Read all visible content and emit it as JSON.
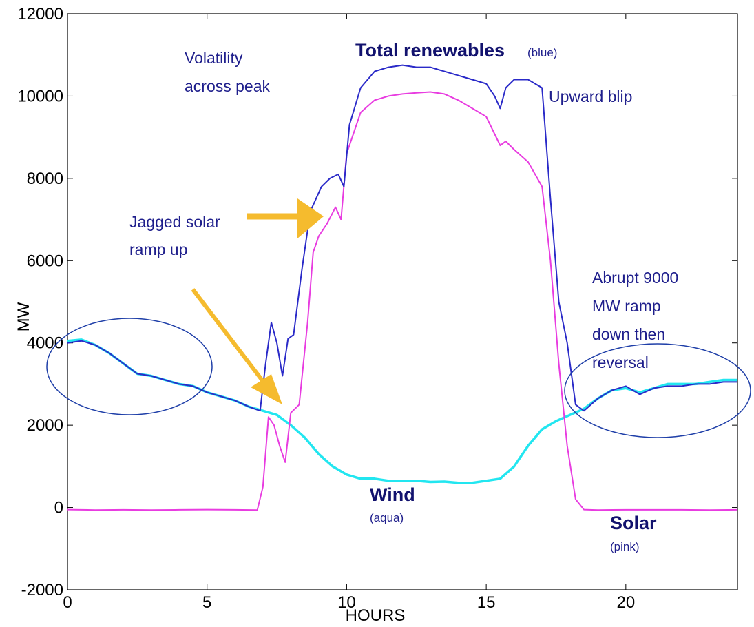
{
  "chart_data": {
    "type": "line",
    "xlabel": "HOURS",
    "ylabel": "MW",
    "xlim": [
      0,
      24
    ],
    "ylim": [
      -2000,
      12000
    ],
    "xticks": [
      0,
      5,
      10,
      15,
      20
    ],
    "yticks": [
      -2000,
      0,
      2000,
      4000,
      6000,
      8000,
      10000,
      12000
    ],
    "grid": false,
    "series": [
      {
        "name": "Wind",
        "color": "#22e6f0",
        "x": [
          0,
          0.5,
          1,
          1.5,
          2,
          2.5,
          3,
          3.5,
          4,
          4.5,
          5,
          5.5,
          6,
          6.5,
          7,
          7.5,
          8,
          8.5,
          9,
          9.5,
          10,
          10.5,
          11,
          11.5,
          12,
          12.5,
          13,
          13.5,
          14,
          14.5,
          15,
          15.5,
          16,
          16.5,
          17,
          17.5,
          18,
          18.5,
          19,
          19.5,
          20,
          20.5,
          21,
          21.5,
          22,
          22.5,
          23,
          23.5,
          24
        ],
        "y": [
          4050,
          4080,
          3950,
          3750,
          3500,
          3250,
          3200,
          3100,
          3000,
          2950,
          2800,
          2700,
          2600,
          2450,
          2350,
          2250,
          2000,
          1700,
          1300,
          1000,
          800,
          700,
          700,
          650,
          650,
          650,
          620,
          630,
          600,
          600,
          650,
          700,
          1000,
          1500,
          1900,
          2100,
          2250,
          2400,
          2650,
          2850,
          2900,
          2800,
          2900,
          3000,
          3000,
          3000,
          3050,
          3100,
          3100
        ]
      },
      {
        "name": "Solar",
        "color": "#e83ce0",
        "x": [
          0,
          1,
          2,
          3,
          4,
          5,
          6,
          6.8,
          7.0,
          7.2,
          7.4,
          7.6,
          7.8,
          8.0,
          8.3,
          8.6,
          8.8,
          9.0,
          9.3,
          9.6,
          9.8,
          10.0,
          10.5,
          11.0,
          11.5,
          12.0,
          12.5,
          13.0,
          13.5,
          14.0,
          14.5,
          15.0,
          15.5,
          15.7,
          16.0,
          16.5,
          17.0,
          17.3,
          17.6,
          17.9,
          18.2,
          18.5,
          19,
          20,
          21,
          22,
          23,
          24
        ],
        "y": [
          -50,
          -60,
          -55,
          -60,
          -55,
          -50,
          -55,
          -60,
          500,
          2200,
          2000,
          1500,
          1100,
          2300,
          2500,
          4500,
          6200,
          6600,
          6900,
          7300,
          7000,
          8600,
          9600,
          9900,
          10000,
          10050,
          10080,
          10100,
          10050,
          9900,
          9700,
          9500,
          8800,
          8900,
          8700,
          8400,
          7800,
          6000,
          3500,
          1500,
          200,
          -50,
          -60,
          -55,
          -55,
          -55,
          -60,
          -55
        ]
      },
      {
        "name": "Total renewables",
        "color": "#2a2ac8",
        "x": [
          0,
          0.5,
          1,
          1.5,
          2,
          2.5,
          3,
          3.5,
          4,
          4.5,
          5,
          5.5,
          6,
          6.5,
          6.9,
          7.1,
          7.3,
          7.5,
          7.7,
          7.9,
          8.1,
          8.4,
          8.7,
          8.9,
          9.1,
          9.4,
          9.7,
          9.9,
          10.1,
          10.5,
          11.0,
          11.5,
          12.0,
          12.5,
          13.0,
          13.5,
          14.0,
          14.5,
          15.0,
          15.3,
          15.5,
          15.7,
          16.0,
          16.5,
          17.0,
          17.3,
          17.6,
          17.9,
          18.2,
          18.5,
          19,
          19.5,
          20,
          20.5,
          21,
          21.5,
          22,
          22.5,
          23,
          23.5,
          24
        ],
        "y": [
          4000,
          4050,
          3950,
          3750,
          3500,
          3250,
          3200,
          3100,
          3000,
          2950,
          2800,
          2700,
          2600,
          2450,
          2350,
          3500,
          4500,
          4000,
          3200,
          4100,
          4200,
          5800,
          7200,
          7500,
          7800,
          8000,
          8100,
          7800,
          9300,
          10200,
          10600,
          10700,
          10750,
          10700,
          10700,
          10600,
          10500,
          10400,
          10300,
          10000,
          9700,
          10200,
          10400,
          10400,
          10200,
          7500,
          5000,
          4000,
          2500,
          2350,
          2650,
          2850,
          2950,
          2750,
          2900,
          2950,
          2950,
          3000,
          3000,
          3050,
          3050
        ]
      }
    ],
    "annotations": {
      "volatility": [
        "Volatility",
        "across peak"
      ],
      "total_bold": "Total renewables",
      "total_note": "(blue)",
      "upward_blip": "Upward blip",
      "jagged": [
        "Jagged solar",
        "ramp up"
      ],
      "abrupt": [
        "Abrupt 9000",
        "MW ramp",
        "down then",
        "reversal"
      ],
      "wind_bold": "Wind",
      "wind_note": "(aqua)",
      "solar_bold": "Solar",
      "solar_note": "(pink)"
    },
    "colors": {
      "arrow": "#f5bb2e",
      "ellipse": "#1f3fa8"
    }
  }
}
